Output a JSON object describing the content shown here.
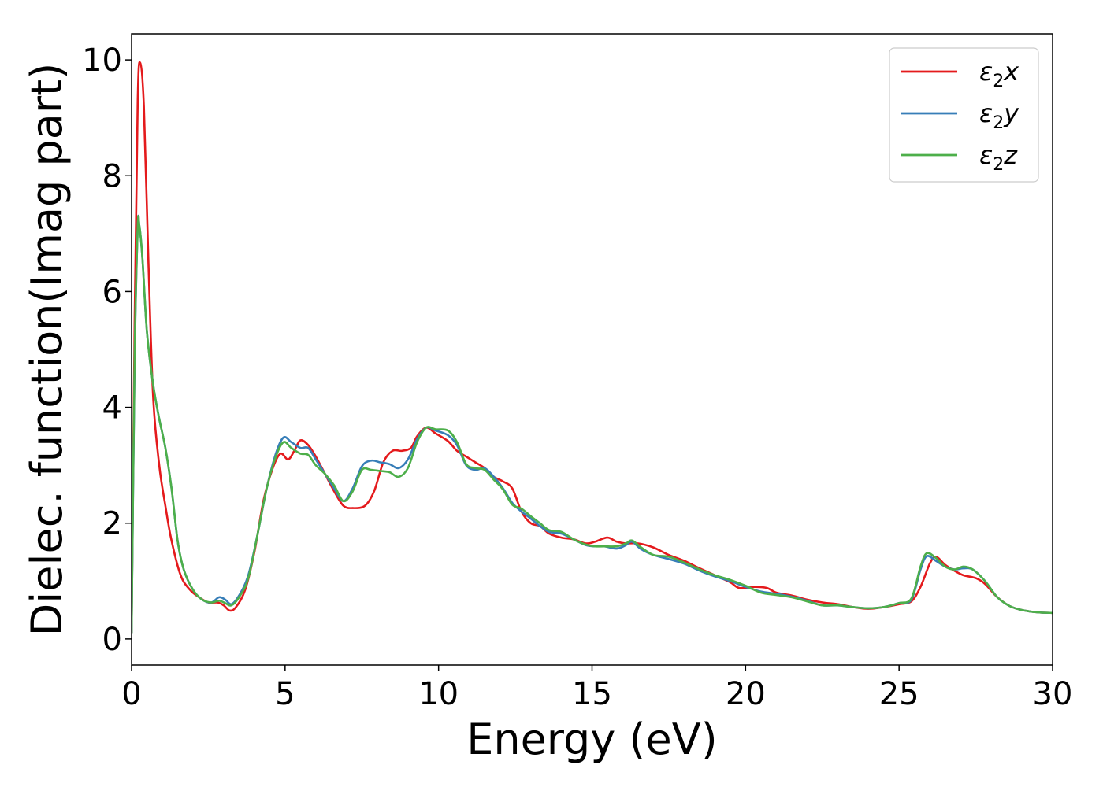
{
  "chart_data": {
    "type": "line",
    "xlabel": "Energy (eV)",
    "ylabel": "Dielec. function(Imag part)",
    "xlim": [
      0,
      30
    ],
    "ylim": [
      -0.45,
      10.45
    ],
    "xticks": [
      0,
      5,
      10,
      15,
      20,
      25,
      30
    ],
    "yticks": [
      0,
      2,
      4,
      6,
      8,
      10
    ],
    "grid": false,
    "legend_position": "top-right",
    "series": [
      {
        "name": "ε₂x",
        "legend": {
          "base": "ε",
          "sub": "2",
          "axis": "x"
        },
        "color": "#e41a1c",
        "points": [
          [
            0,
            0.1
          ],
          [
            0.1,
            5.5
          ],
          [
            0.2,
            9.3
          ],
          [
            0.28,
            9.95
          ],
          [
            0.4,
            9.2
          ],
          [
            0.55,
            6.5
          ],
          [
            0.7,
            4.2
          ],
          [
            0.9,
            3.0
          ],
          [
            1.1,
            2.3
          ],
          [
            1.3,
            1.7
          ],
          [
            1.6,
            1.1
          ],
          [
            1.9,
            0.85
          ],
          [
            2.2,
            0.72
          ],
          [
            2.5,
            0.63
          ],
          [
            2.8,
            0.63
          ],
          [
            3.0,
            0.58
          ],
          [
            3.2,
            0.49
          ],
          [
            3.4,
            0.55
          ],
          [
            3.7,
            0.85
          ],
          [
            4.0,
            1.5
          ],
          [
            4.3,
            2.4
          ],
          [
            4.6,
            2.95
          ],
          [
            4.85,
            3.2
          ],
          [
            5.1,
            3.1
          ],
          [
            5.3,
            3.25
          ],
          [
            5.5,
            3.43
          ],
          [
            5.75,
            3.35
          ],
          [
            6.0,
            3.15
          ],
          [
            6.3,
            2.85
          ],
          [
            6.6,
            2.55
          ],
          [
            6.9,
            2.3
          ],
          [
            7.2,
            2.26
          ],
          [
            7.6,
            2.3
          ],
          [
            7.9,
            2.55
          ],
          [
            8.2,
            3.05
          ],
          [
            8.5,
            3.25
          ],
          [
            8.8,
            3.25
          ],
          [
            9.1,
            3.3
          ],
          [
            9.3,
            3.5
          ],
          [
            9.6,
            3.65
          ],
          [
            9.9,
            3.55
          ],
          [
            10.3,
            3.42
          ],
          [
            10.6,
            3.25
          ],
          [
            10.9,
            3.15
          ],
          [
            11.2,
            3.05
          ],
          [
            11.5,
            2.95
          ],
          [
            11.8,
            2.8
          ],
          [
            12.1,
            2.72
          ],
          [
            12.4,
            2.6
          ],
          [
            12.7,
            2.2
          ],
          [
            13.0,
            2.0
          ],
          [
            13.3,
            1.95
          ],
          [
            13.6,
            1.82
          ],
          [
            14.0,
            1.75
          ],
          [
            14.4,
            1.72
          ],
          [
            14.8,
            1.65
          ],
          [
            15.1,
            1.68
          ],
          [
            15.5,
            1.75
          ],
          [
            15.8,
            1.68
          ],
          [
            16.1,
            1.65
          ],
          [
            16.5,
            1.65
          ],
          [
            17.0,
            1.58
          ],
          [
            17.5,
            1.45
          ],
          [
            18.0,
            1.35
          ],
          [
            18.5,
            1.22
          ],
          [
            19.0,
            1.1
          ],
          [
            19.5,
            0.98
          ],
          [
            19.8,
            0.88
          ],
          [
            20.3,
            0.9
          ],
          [
            20.7,
            0.88
          ],
          [
            21.0,
            0.8
          ],
          [
            21.5,
            0.75
          ],
          [
            22.0,
            0.68
          ],
          [
            22.5,
            0.63
          ],
          [
            23.0,
            0.6
          ],
          [
            23.5,
            0.55
          ],
          [
            24.0,
            0.52
          ],
          [
            24.5,
            0.55
          ],
          [
            25.0,
            0.6
          ],
          [
            25.4,
            0.65
          ],
          [
            25.7,
            0.9
          ],
          [
            26.0,
            1.3
          ],
          [
            26.2,
            1.42
          ],
          [
            26.5,
            1.28
          ],
          [
            26.8,
            1.18
          ],
          [
            27.1,
            1.1
          ],
          [
            27.5,
            1.05
          ],
          [
            27.8,
            0.95
          ],
          [
            28.2,
            0.72
          ],
          [
            28.6,
            0.57
          ],
          [
            29.0,
            0.5
          ],
          [
            29.5,
            0.46
          ],
          [
            30.0,
            0.45
          ]
        ]
      },
      {
        "name": "ε₂y",
        "legend": {
          "base": "ε",
          "sub": "2",
          "axis": "y"
        },
        "color": "#377eb8",
        "points": [
          [
            0,
            0.1
          ],
          [
            0.1,
            4.8
          ],
          [
            0.2,
            7.1
          ],
          [
            0.25,
            7.15
          ],
          [
            0.35,
            6.6
          ],
          [
            0.5,
            5.3
          ],
          [
            0.7,
            4.4
          ],
          [
            0.9,
            3.8
          ],
          [
            1.1,
            3.3
          ],
          [
            1.3,
            2.6
          ],
          [
            1.5,
            1.7
          ],
          [
            1.7,
            1.2
          ],
          [
            2.0,
            0.85
          ],
          [
            2.3,
            0.68
          ],
          [
            2.6,
            0.63
          ],
          [
            2.85,
            0.72
          ],
          [
            3.05,
            0.68
          ],
          [
            3.25,
            0.6
          ],
          [
            3.5,
            0.75
          ],
          [
            3.8,
            1.1
          ],
          [
            4.1,
            1.8
          ],
          [
            4.4,
            2.6
          ],
          [
            4.7,
            3.2
          ],
          [
            4.95,
            3.48
          ],
          [
            5.2,
            3.4
          ],
          [
            5.5,
            3.3
          ],
          [
            5.75,
            3.3
          ],
          [
            6.0,
            3.1
          ],
          [
            6.3,
            2.85
          ],
          [
            6.6,
            2.6
          ],
          [
            6.9,
            2.38
          ],
          [
            7.2,
            2.6
          ],
          [
            7.5,
            2.98
          ],
          [
            7.8,
            3.08
          ],
          [
            8.1,
            3.05
          ],
          [
            8.4,
            3.02
          ],
          [
            8.7,
            2.95
          ],
          [
            9.0,
            3.1
          ],
          [
            9.3,
            3.45
          ],
          [
            9.6,
            3.65
          ],
          [
            9.9,
            3.6
          ],
          [
            10.3,
            3.52
          ],
          [
            10.6,
            3.35
          ],
          [
            10.9,
            3.0
          ],
          [
            11.2,
            2.92
          ],
          [
            11.5,
            2.95
          ],
          [
            11.8,
            2.8
          ],
          [
            12.1,
            2.6
          ],
          [
            12.4,
            2.35
          ],
          [
            12.7,
            2.2
          ],
          [
            13.0,
            2.08
          ],
          [
            13.3,
            1.95
          ],
          [
            13.6,
            1.85
          ],
          [
            14.0,
            1.82
          ],
          [
            14.4,
            1.72
          ],
          [
            14.8,
            1.62
          ],
          [
            15.1,
            1.6
          ],
          [
            15.4,
            1.6
          ],
          [
            15.8,
            1.56
          ],
          [
            16.1,
            1.62
          ],
          [
            16.3,
            1.68
          ],
          [
            16.6,
            1.55
          ],
          [
            17.0,
            1.45
          ],
          [
            17.5,
            1.38
          ],
          [
            18.0,
            1.3
          ],
          [
            18.5,
            1.18
          ],
          [
            19.0,
            1.08
          ],
          [
            19.5,
            1.0
          ],
          [
            20.0,
            0.9
          ],
          [
            20.5,
            0.82
          ],
          [
            21.0,
            0.78
          ],
          [
            21.5,
            0.73
          ],
          [
            22.0,
            0.66
          ],
          [
            22.5,
            0.58
          ],
          [
            23.0,
            0.58
          ],
          [
            23.5,
            0.55
          ],
          [
            24.0,
            0.53
          ],
          [
            24.5,
            0.55
          ],
          [
            25.0,
            0.62
          ],
          [
            25.4,
            0.68
          ],
          [
            25.7,
            1.2
          ],
          [
            25.9,
            1.43
          ],
          [
            26.2,
            1.35
          ],
          [
            26.5,
            1.25
          ],
          [
            26.8,
            1.2
          ],
          [
            27.1,
            1.22
          ],
          [
            27.4,
            1.2
          ],
          [
            27.8,
            1.0
          ],
          [
            28.2,
            0.72
          ],
          [
            28.6,
            0.57
          ],
          [
            29.0,
            0.5
          ],
          [
            29.5,
            0.46
          ],
          [
            30.0,
            0.45
          ]
        ]
      },
      {
        "name": "ε₂z",
        "legend": {
          "base": "ε",
          "sub": "2",
          "axis": "z"
        },
        "color": "#4daf4a",
        "points": [
          [
            0,
            0.1
          ],
          [
            0.1,
            4.9
          ],
          [
            0.2,
            7.1
          ],
          [
            0.25,
            7.15
          ],
          [
            0.35,
            6.6
          ],
          [
            0.5,
            5.3
          ],
          [
            0.7,
            4.4
          ],
          [
            0.9,
            3.8
          ],
          [
            1.1,
            3.3
          ],
          [
            1.3,
            2.6
          ],
          [
            1.5,
            1.7
          ],
          [
            1.7,
            1.2
          ],
          [
            2.0,
            0.85
          ],
          [
            2.3,
            0.68
          ],
          [
            2.6,
            0.63
          ],
          [
            2.85,
            0.66
          ],
          [
            3.05,
            0.62
          ],
          [
            3.25,
            0.58
          ],
          [
            3.5,
            0.72
          ],
          [
            3.8,
            1.05
          ],
          [
            4.1,
            1.8
          ],
          [
            4.4,
            2.6
          ],
          [
            4.7,
            3.15
          ],
          [
            4.95,
            3.4
          ],
          [
            5.2,
            3.3
          ],
          [
            5.5,
            3.2
          ],
          [
            5.75,
            3.18
          ],
          [
            6.0,
            3.0
          ],
          [
            6.3,
            2.85
          ],
          [
            6.6,
            2.65
          ],
          [
            6.9,
            2.38
          ],
          [
            7.2,
            2.55
          ],
          [
            7.5,
            2.92
          ],
          [
            7.8,
            2.92
          ],
          [
            8.1,
            2.9
          ],
          [
            8.4,
            2.88
          ],
          [
            8.7,
            2.8
          ],
          [
            9.0,
            2.95
          ],
          [
            9.3,
            3.4
          ],
          [
            9.6,
            3.65
          ],
          [
            9.9,
            3.62
          ],
          [
            10.3,
            3.6
          ],
          [
            10.6,
            3.4
          ],
          [
            10.9,
            3.02
          ],
          [
            11.2,
            2.95
          ],
          [
            11.5,
            2.92
          ],
          [
            11.8,
            2.75
          ],
          [
            12.1,
            2.58
          ],
          [
            12.4,
            2.32
          ],
          [
            12.7,
            2.25
          ],
          [
            13.0,
            2.12
          ],
          [
            13.3,
            2.0
          ],
          [
            13.6,
            1.88
          ],
          [
            14.0,
            1.85
          ],
          [
            14.4,
            1.72
          ],
          [
            14.8,
            1.63
          ],
          [
            15.1,
            1.6
          ],
          [
            15.4,
            1.6
          ],
          [
            15.8,
            1.6
          ],
          [
            16.1,
            1.65
          ],
          [
            16.3,
            1.7
          ],
          [
            16.6,
            1.58
          ],
          [
            17.0,
            1.45
          ],
          [
            17.5,
            1.42
          ],
          [
            18.0,
            1.32
          ],
          [
            18.5,
            1.2
          ],
          [
            19.0,
            1.1
          ],
          [
            19.5,
            1.02
          ],
          [
            20.0,
            0.92
          ],
          [
            20.5,
            0.8
          ],
          [
            21.0,
            0.76
          ],
          [
            21.5,
            0.72
          ],
          [
            22.0,
            0.65
          ],
          [
            22.5,
            0.58
          ],
          [
            23.0,
            0.58
          ],
          [
            23.5,
            0.55
          ],
          [
            24.0,
            0.53
          ],
          [
            24.5,
            0.55
          ],
          [
            25.0,
            0.62
          ],
          [
            25.4,
            0.7
          ],
          [
            25.7,
            1.25
          ],
          [
            25.9,
            1.48
          ],
          [
            26.2,
            1.4
          ],
          [
            26.5,
            1.25
          ],
          [
            26.8,
            1.2
          ],
          [
            27.1,
            1.25
          ],
          [
            27.4,
            1.2
          ],
          [
            27.8,
            1.0
          ],
          [
            28.2,
            0.72
          ],
          [
            28.6,
            0.57
          ],
          [
            29.0,
            0.5
          ],
          [
            29.5,
            0.46
          ],
          [
            30.0,
            0.45
          ]
        ]
      }
    ]
  }
}
